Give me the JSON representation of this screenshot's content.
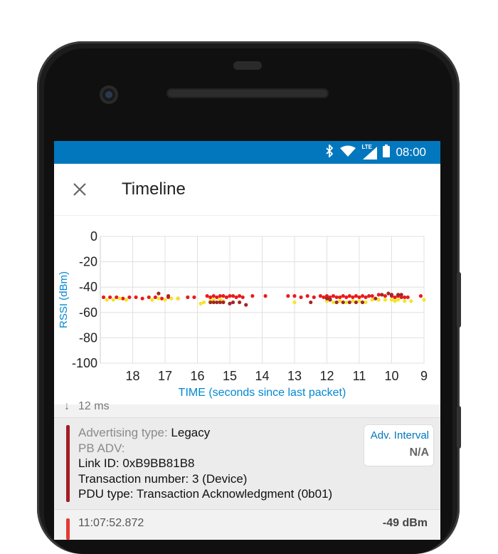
{
  "status_bar": {
    "time": "08:00",
    "network_label": "LTE"
  },
  "app_bar": {
    "title": "Timeline"
  },
  "chart_data": {
    "type": "scatter",
    "ylabel": "RSSI (dBm)",
    "xlabel": "TIME (seconds since last packet)",
    "x_ticks": [
      "18",
      "17",
      "16",
      "15",
      "14",
      "13",
      "12",
      "11",
      "10",
      "9"
    ],
    "y_ticks": [
      "0",
      "-20",
      "-40",
      "-60",
      "-80",
      "-100"
    ],
    "xlim": [
      19,
      9
    ],
    "ylim": [
      -100,
      0
    ],
    "grid": true,
    "series": [
      {
        "color": "#e81c1c",
        "points": [
          [
            18.9,
            -48
          ],
          [
            18.7,
            -48
          ],
          [
            18.5,
            -48
          ],
          [
            18.3,
            -49
          ],
          [
            18.1,
            -48
          ],
          [
            17.9,
            -48
          ],
          [
            17.7,
            -49
          ],
          [
            17.5,
            -48
          ],
          [
            17.3,
            -48
          ],
          [
            17.1,
            -49
          ],
          [
            16.9,
            -48
          ],
          [
            16.6,
            -49
          ],
          [
            16.3,
            -48
          ],
          [
            16.1,
            -48
          ],
          [
            15.7,
            -47
          ],
          [
            15.6,
            -48
          ],
          [
            15.5,
            -47
          ],
          [
            15.4,
            -48
          ],
          [
            15.3,
            -47
          ],
          [
            15.2,
            -47
          ],
          [
            15.1,
            -48
          ],
          [
            15.0,
            -47
          ],
          [
            14.9,
            -47
          ],
          [
            14.8,
            -48
          ],
          [
            14.7,
            -47
          ],
          [
            14.6,
            -48
          ],
          [
            14.3,
            -47
          ],
          [
            13.9,
            -47
          ],
          [
            13.2,
            -47
          ],
          [
            13.0,
            -47
          ],
          [
            12.8,
            -48
          ],
          [
            12.6,
            -47
          ],
          [
            12.4,
            -48
          ],
          [
            12.2,
            -47
          ],
          [
            12.1,
            -48
          ],
          [
            12.0,
            -47
          ],
          [
            11.9,
            -48
          ],
          [
            11.8,
            -47
          ],
          [
            11.7,
            -48
          ],
          [
            11.6,
            -48
          ],
          [
            11.5,
            -47
          ],
          [
            11.4,
            -48
          ],
          [
            11.3,
            -47
          ],
          [
            11.2,
            -48
          ],
          [
            11.1,
            -47
          ],
          [
            11.0,
            -48
          ],
          [
            10.9,
            -47
          ],
          [
            10.8,
            -48
          ],
          [
            10.7,
            -47
          ],
          [
            10.6,
            -47
          ],
          [
            10.4,
            -46
          ],
          [
            10.2,
            -47
          ],
          [
            10.0,
            -47
          ],
          [
            9.9,
            -48
          ],
          [
            9.8,
            -47
          ],
          [
            9.7,
            -48
          ],
          [
            9.6,
            -48
          ],
          [
            9.5,
            -48
          ],
          [
            9.1,
            -47
          ]
        ]
      },
      {
        "color": "#f2e626",
        "points": [
          [
            18.8,
            -50
          ],
          [
            18.6,
            -50
          ],
          [
            18.4,
            -49
          ],
          [
            18.2,
            -50
          ],
          [
            17.4,
            -50
          ],
          [
            17.2,
            -49
          ],
          [
            17.0,
            -50
          ],
          [
            16.8,
            -49
          ],
          [
            16.6,
            -49
          ],
          [
            15.9,
            -53
          ],
          [
            15.8,
            -52
          ],
          [
            15.6,
            -51
          ],
          [
            15.5,
            -50
          ],
          [
            15.3,
            -50
          ],
          [
            15.2,
            -51
          ],
          [
            13.0,
            -52
          ],
          [
            12.0,
            -51
          ],
          [
            11.8,
            -52
          ],
          [
            11.6,
            -51
          ],
          [
            11.4,
            -52
          ],
          [
            11.2,
            -51
          ],
          [
            11.0,
            -51
          ],
          [
            10.8,
            -52
          ],
          [
            10.6,
            -50
          ],
          [
            10.4,
            -50
          ],
          [
            10.2,
            -50
          ],
          [
            10.0,
            -50
          ],
          [
            9.9,
            -51
          ],
          [
            9.8,
            -50
          ],
          [
            9.6,
            -51
          ],
          [
            9.4,
            -51
          ],
          [
            9.0,
            -50
          ]
        ]
      },
      {
        "color": "#a32626",
        "points": [
          [
            17.2,
            -45
          ],
          [
            16.9,
            -47
          ],
          [
            15.6,
            -52
          ],
          [
            15.5,
            -52
          ],
          [
            15.4,
            -52
          ],
          [
            15.3,
            -52
          ],
          [
            15.2,
            -52
          ],
          [
            15.0,
            -53
          ],
          [
            14.9,
            -52
          ],
          [
            14.7,
            -52
          ],
          [
            14.5,
            -54
          ],
          [
            12.5,
            -52
          ],
          [
            12.0,
            -49
          ],
          [
            11.9,
            -50
          ],
          [
            11.7,
            -52
          ],
          [
            11.5,
            -52
          ],
          [
            11.3,
            -52
          ],
          [
            11.1,
            -52
          ],
          [
            10.9,
            -52
          ],
          [
            10.5,
            -49
          ],
          [
            10.3,
            -46
          ],
          [
            10.1,
            -45
          ],
          [
            10.0,
            -46
          ],
          [
            9.8,
            -46
          ],
          [
            9.7,
            -46
          ]
        ]
      }
    ]
  },
  "packet_list": {
    "interval_label": "12 ms",
    "card": {
      "adv_type_label": "Advertising type:",
      "adv_type_value": "Legacy",
      "pb_adv": "PB ADV:",
      "link_id": "Link ID: 0xB9BB81B8",
      "transaction": "Transaction number: 3 (Device)",
      "pdu_type": "PDU type: Transaction Acknowledgment (0b01)",
      "adv_interval_label": "Adv. Interval",
      "adv_interval_value": "N/A"
    },
    "next": {
      "time": "11:07:52.872",
      "rssi": "-49 dBm"
    }
  }
}
